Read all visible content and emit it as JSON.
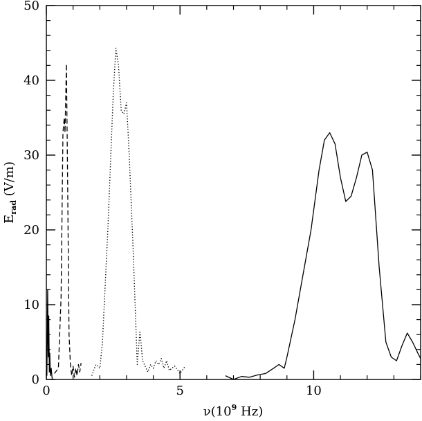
{
  "chart_data": {
    "type": "line",
    "title": "",
    "xlabel": "ν(10",
    "xlabel_exp": "9",
    "xlabel_unit": " Hz)",
    "ylabel": "E",
    "ylabel_sub": "rad",
    "ylabel_unit": " (V/m)",
    "xlim": [
      0,
      14
    ],
    "ylim": [
      0,
      50
    ],
    "x_ticks": [
      0,
      5,
      10
    ],
    "y_ticks": [
      0,
      10,
      20,
      30,
      40,
      50
    ],
    "x_minor_step": 1,
    "y_minor_step": 2,
    "grid": false,
    "legend": "none",
    "series": [
      {
        "style": "solid",
        "points": [
          [
            0.02,
            0.5
          ],
          [
            0.05,
            12.0
          ],
          [
            0.07,
            3.0
          ],
          [
            0.09,
            8.5
          ],
          [
            0.11,
            1.0
          ],
          [
            0.13,
            3.5
          ],
          [
            0.15,
            0.5
          ],
          [
            0.18,
            1.5
          ],
          [
            0.22,
            0.0
          ]
        ]
      },
      {
        "style": "dashed",
        "points": [
          [
            0.3,
            0.8
          ],
          [
            0.45,
            1.5
          ],
          [
            0.55,
            11.0
          ],
          [
            0.62,
            33.0
          ],
          [
            0.67,
            35.0
          ],
          [
            0.7,
            33.0
          ],
          [
            0.75,
            42.2
          ],
          [
            0.8,
            25.0
          ],
          [
            0.85,
            6.0
          ],
          [
            0.9,
            2.0
          ],
          [
            0.95,
            0.5
          ],
          [
            1.0,
            1.8
          ],
          [
            1.05,
            0.3
          ],
          [
            1.1,
            1.5
          ],
          [
            1.15,
            0.5
          ],
          [
            1.2,
            2.0
          ],
          [
            1.25,
            1.0
          ],
          [
            1.3,
            2.2
          ]
        ]
      },
      {
        "style": "dotted",
        "points": [
          [
            1.7,
            0.5
          ],
          [
            1.85,
            2.0
          ],
          [
            2.0,
            1.5
          ],
          [
            2.1,
            5.0
          ],
          [
            2.3,
            20.0
          ],
          [
            2.5,
            38.0
          ],
          [
            2.6,
            44.3
          ],
          [
            2.7,
            42.0
          ],
          [
            2.8,
            36.0
          ],
          [
            2.9,
            35.5
          ],
          [
            3.0,
            37.0
          ],
          [
            3.1,
            30.0
          ],
          [
            3.25,
            17.0
          ],
          [
            3.4,
            2.0
          ],
          [
            3.5,
            6.5
          ],
          [
            3.6,
            2.5
          ],
          [
            3.8,
            1.0
          ],
          [
            3.9,
            2.0
          ],
          [
            4.0,
            1.5
          ],
          [
            4.1,
            2.5
          ],
          [
            4.2,
            2.0
          ],
          [
            4.3,
            2.8
          ],
          [
            4.4,
            1.5
          ],
          [
            4.5,
            2.5
          ],
          [
            4.6,
            1.2
          ],
          [
            4.8,
            1.8
          ],
          [
            5.0,
            0.8
          ],
          [
            5.2,
            1.8
          ]
        ]
      },
      {
        "style": "solid",
        "points": [
          [
            6.7,
            0.5
          ],
          [
            7.0,
            0.0
          ],
          [
            7.3,
            0.4
          ],
          [
            7.6,
            0.3
          ],
          [
            7.9,
            0.6
          ],
          [
            8.2,
            0.8
          ],
          [
            8.5,
            1.5
          ],
          [
            8.7,
            2.0
          ],
          [
            8.9,
            1.5
          ],
          [
            9.0,
            3.0
          ],
          [
            9.3,
            8.0
          ],
          [
            9.6,
            14.0
          ],
          [
            9.9,
            20.0
          ],
          [
            10.2,
            28.0
          ],
          [
            10.4,
            32.0
          ],
          [
            10.6,
            33.0
          ],
          [
            10.8,
            31.5
          ],
          [
            11.0,
            27.0
          ],
          [
            11.2,
            23.8
          ],
          [
            11.4,
            24.5
          ],
          [
            11.6,
            27.0
          ],
          [
            11.8,
            30.0
          ],
          [
            12.0,
            30.4
          ],
          [
            12.2,
            28.0
          ],
          [
            12.45,
            15.0
          ],
          [
            12.7,
            5.0
          ],
          [
            12.9,
            3.0
          ],
          [
            13.1,
            2.5
          ],
          [
            13.3,
            4.5
          ],
          [
            13.5,
            6.2
          ],
          [
            13.7,
            5.0
          ],
          [
            13.9,
            3.5
          ],
          [
            14.0,
            2.8
          ]
        ]
      }
    ]
  }
}
